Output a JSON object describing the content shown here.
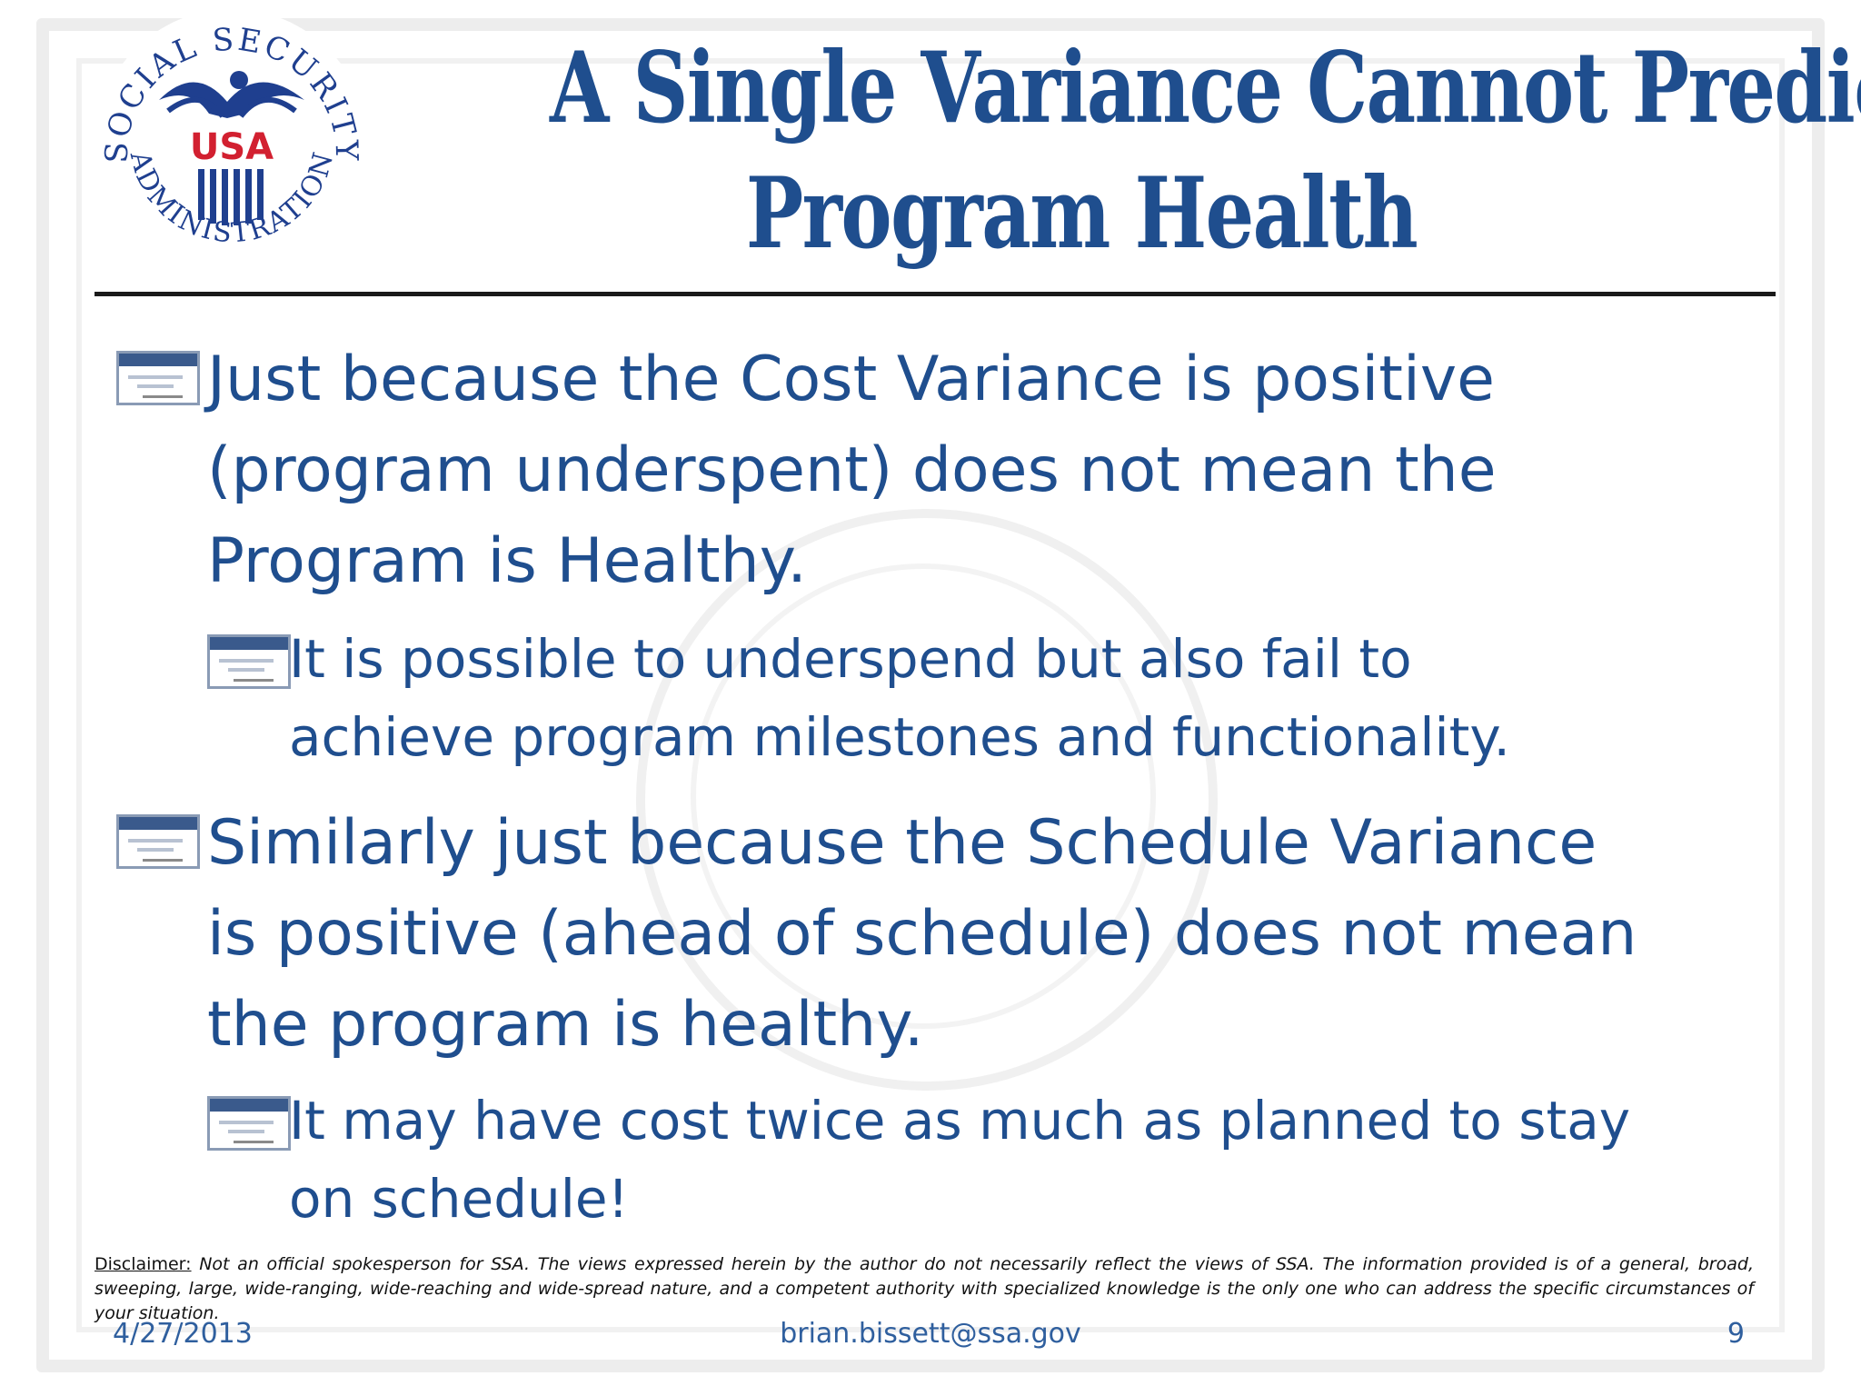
{
  "slide": {
    "title_lines": [
      "A Single Variance Cannot Predict",
      "Program Health"
    ],
    "logo": {
      "ring_text": "SOCIAL SECURITY ADMINISTRATION",
      "center_text": "USA",
      "icon": "eagle-seal-icon",
      "colors": {
        "blue": "#1f3f8f",
        "red": "#d22030"
      }
    },
    "bullets": [
      {
        "level": 1,
        "icon": "social-security-card-icon",
        "text": "Just because the Cost Variance is positive\n(program underspent) does not mean the\nProgram is Healthy."
      },
      {
        "level": 2,
        "icon": "social-security-card-icon",
        "text": "It is possible to underspend but also fail to\nachieve program milestones and functionality."
      },
      {
        "level": 1,
        "icon": "social-security-card-icon",
        "text": "Similarly just because the Schedule Variance\nis positive (ahead of schedule) does not mean\nthe program is healthy."
      },
      {
        "level": 2,
        "icon": "social-security-card-icon",
        "text": "It may have cost twice as much as planned to stay\non schedule!"
      }
    ],
    "disclaimer": {
      "label": "Disclaimer:",
      "text": " Not an official spokesperson for SSA. The views expressed herein by the author do not necessarily reflect the views of SSA. The information provided is of a general, broad, sweeping, large, wide-ranging, wide-reaching and wide-spread nature, and a competent authority with specialized knowledge is the only one who can address the specific circumstances of your situation."
    },
    "footer": {
      "date": "4/27/2013",
      "email": "brian.bissett@ssa.gov",
      "page": "9"
    },
    "colors": {
      "title": "#1f4e8e",
      "body": "#1f4e8e",
      "rule": "#1a1a1a"
    }
  }
}
